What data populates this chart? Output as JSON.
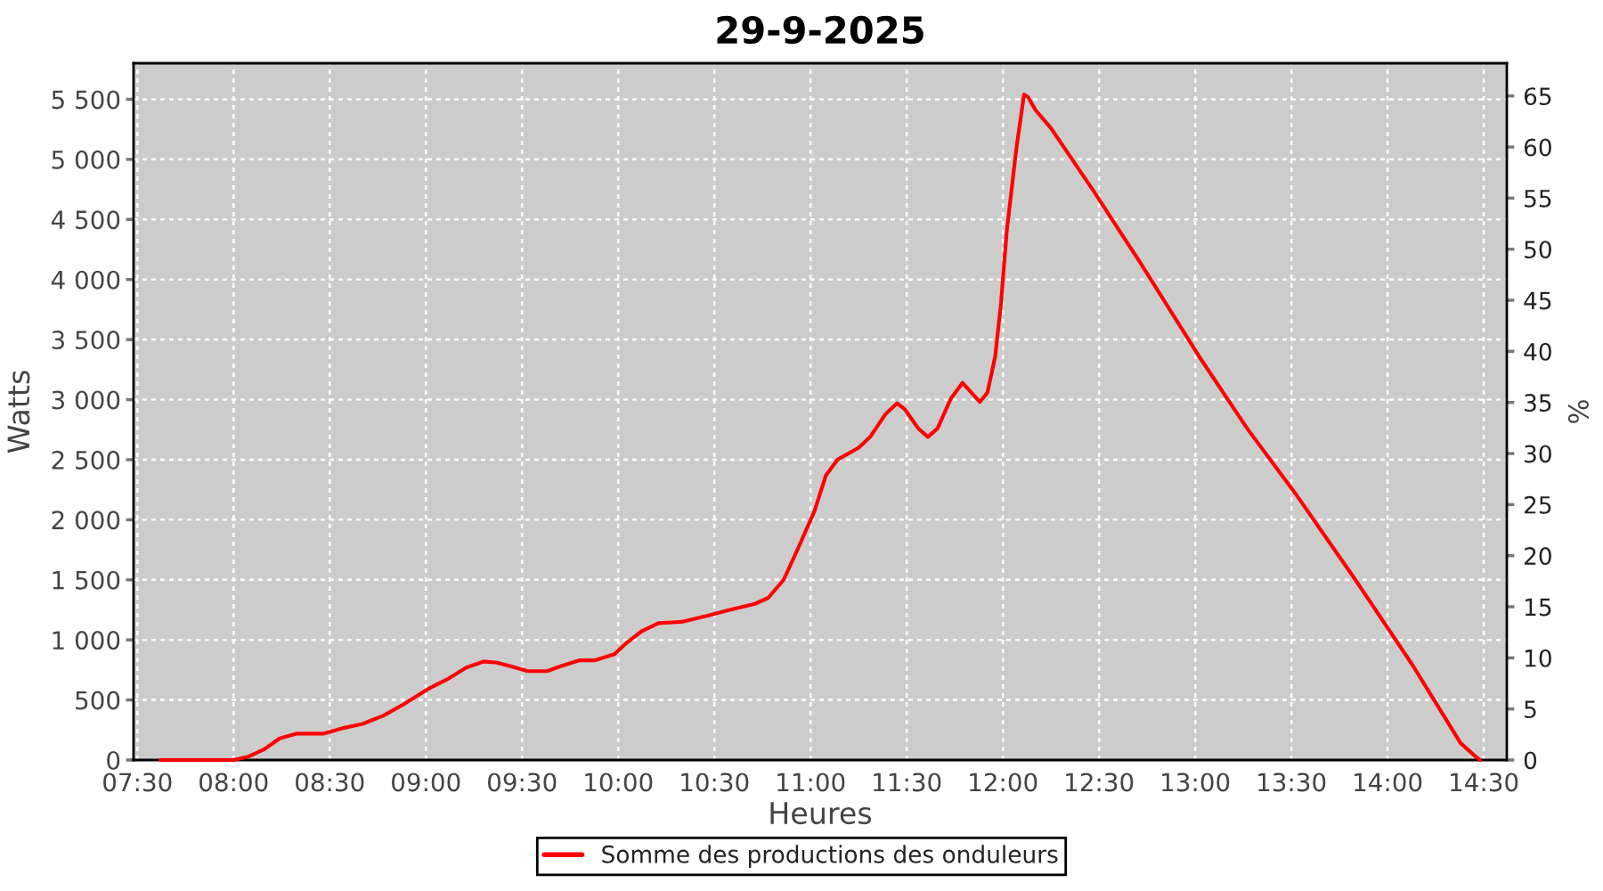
{
  "chart_data": {
    "type": "line",
    "title": "29-9-2025",
    "xlabel": "Heures",
    "ylabel": "Watts",
    "y2label": "%",
    "x": [
      7.62,
      8.0,
      8.08,
      8.16,
      8.24,
      8.33,
      8.47,
      8.58,
      8.67,
      8.78,
      8.88,
      9.01,
      9.12,
      9.21,
      9.3,
      9.37,
      9.44,
      9.53,
      9.63,
      9.7,
      9.8,
      9.88,
      9.98,
      10.04,
      10.12,
      10.21,
      10.33,
      10.46,
      10.58,
      10.71,
      10.78,
      10.86,
      10.94,
      11.02,
      11.08,
      11.14,
      11.25,
      11.31,
      11.39,
      11.45,
      11.49,
      11.56,
      11.61,
      11.66,
      11.73,
      11.79,
      11.88,
      11.92,
      11.96,
      11.99,
      12.02,
      12.07,
      12.11,
      12.13,
      12.17,
      12.25,
      12.47,
      12.71,
      13.02,
      13.27,
      13.52,
      13.82,
      14.13,
      14.38,
      14.45,
      14.48
    ],
    "series": [
      {
        "name": "Somme des productions des onduleurs",
        "color": "#ff0000",
        "values": [
          0,
          0,
          30,
          90,
          180,
          220,
          220,
          270,
          300,
          370,
          460,
          590,
          680,
          770,
          820,
          810,
          780,
          740,
          740,
          780,
          830,
          830,
          880,
          970,
          1070,
          1140,
          1150,
          1200,
          1250,
          1300,
          1350,
          1500,
          1780,
          2070,
          2370,
          2500,
          2600,
          2690,
          2880,
          2970,
          2920,
          2760,
          2690,
          2760,
          3010,
          3140,
          2980,
          3060,
          3360,
          3800,
          4400,
          5090,
          5540,
          5520,
          5410,
          5260,
          4740,
          4150,
          3360,
          2760,
          2220,
          1530,
          790,
          140,
          40,
          0
        ]
      }
    ],
    "xlim": [
      7.48,
      14.62
    ],
    "xticks": [
      {
        "value": 7.5,
        "label": "07:30"
      },
      {
        "value": 8,
        "label": "08:00"
      },
      {
        "value": 8.5,
        "label": "08:30"
      },
      {
        "value": 9,
        "label": "09:00"
      },
      {
        "value": 9.5,
        "label": "09:30"
      },
      {
        "value": 10,
        "label": "10:00"
      },
      {
        "value": 10.5,
        "label": "10:30"
      },
      {
        "value": 11,
        "label": "11:00"
      },
      {
        "value": 11.5,
        "label": "11:30"
      },
      {
        "value": 12,
        "label": "12:00"
      },
      {
        "value": 12.5,
        "label": "12:30"
      },
      {
        "value": 13,
        "label": "13:00"
      },
      {
        "value": 13.5,
        "label": "13:30"
      },
      {
        "value": 14,
        "label": "14:00"
      },
      {
        "value": 14.5,
        "label": "14:30"
      }
    ],
    "ylim": [
      0,
      5800
    ],
    "yticks": [
      0,
      500,
      {
        "value": 1000,
        "label": "1 000"
      },
      {
        "value": 1500,
        "label": "1 500"
      },
      {
        "value": 2000,
        "label": "2 000"
      },
      {
        "value": 2500,
        "label": "2 500"
      },
      {
        "value": 3000,
        "label": "3 000"
      },
      {
        "value": 3500,
        "label": "3 500"
      },
      {
        "value": 4000,
        "label": "4 000"
      },
      {
        "value": 4500,
        "label": "4 500"
      },
      {
        "value": 5000,
        "label": "5 000"
      },
      {
        "value": 5500,
        "label": "5 500"
      }
    ],
    "y2lim": [
      0,
      68.2
    ],
    "y2ticks": [
      0,
      5,
      10,
      15,
      20,
      25,
      30,
      35,
      40,
      45,
      50,
      55,
      60,
      65
    ],
    "grid": true,
    "legend": "bottom",
    "marker": "none",
    "line_style": "solid"
  }
}
